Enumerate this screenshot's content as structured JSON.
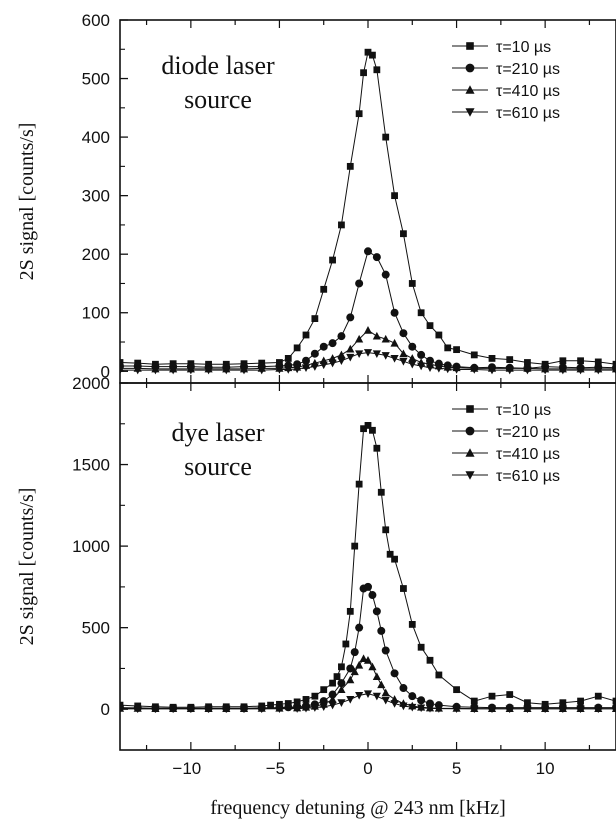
{
  "chart_data": [
    {
      "type": "line",
      "panel": "top",
      "annotation": [
        "diode laser",
        "source"
      ],
      "xlabel": "",
      "ylabel": "2S signal [counts/s]",
      "xlim": [
        -14,
        14
      ],
      "ylim": [
        -20,
        600
      ],
      "yticks": [
        0,
        100,
        200,
        300,
        400,
        500,
        600
      ],
      "legend_position": "top-right",
      "series": [
        {
          "name": "τ=10 µs",
          "marker": "square",
          "x": [
            -14,
            -13,
            -12,
            -11,
            -10,
            -9,
            -8,
            -7,
            -6,
            -5,
            -4.5,
            -4,
            -3.5,
            -3,
            -2.5,
            -2,
            -1.5,
            -1,
            -0.5,
            -0.25,
            0,
            0.25,
            0.5,
            1,
            1.5,
            2,
            2.5,
            3,
            3.5,
            4,
            4.5,
            5,
            6,
            7,
            8,
            9,
            10,
            11,
            12,
            13,
            14
          ],
          "y": [
            15,
            14,
            12,
            13,
            13,
            12,
            12,
            13,
            14,
            15,
            22,
            40,
            62,
            90,
            140,
            190,
            250,
            350,
            440,
            510,
            545,
            540,
            515,
            400,
            300,
            235,
            150,
            100,
            78,
            62,
            40,
            37,
            28,
            22,
            20,
            15,
            12,
            18,
            18,
            16,
            12
          ]
        },
        {
          "name": "τ=210 µs",
          "marker": "circle",
          "x": [
            -14,
            -13,
            -12,
            -11,
            -10,
            -9,
            -8,
            -7,
            -6,
            -5,
            -4.5,
            -4,
            -3.5,
            -3,
            -2.5,
            -2,
            -1.5,
            -1,
            -0.5,
            0,
            0.5,
            1,
            1.5,
            2,
            2.5,
            3,
            3.5,
            4,
            4.5,
            5,
            6,
            7,
            8,
            9,
            10,
            11,
            12,
            13,
            14
          ],
          "y": [
            9,
            9,
            8,
            8,
            8,
            7,
            7,
            8,
            8,
            9,
            10,
            12,
            18,
            30,
            42,
            48,
            60,
            92,
            150,
            205,
            195,
            165,
            100,
            65,
            42,
            28,
            18,
            13,
            10,
            8,
            6,
            7,
            6,
            5,
            8,
            7,
            6,
            7,
            6
          ]
        },
        {
          "name": "τ=410 µs",
          "marker": "triangle-up",
          "x": [
            -14,
            -13,
            -12,
            -11,
            -10,
            -9,
            -8,
            -7,
            -6,
            -5,
            -4.5,
            -4,
            -3.5,
            -3,
            -2.5,
            -2,
            -1.5,
            -1,
            -0.5,
            0,
            0.5,
            1,
            1.5,
            2,
            2.5,
            3,
            3.5,
            4,
            4.5,
            5,
            6,
            7,
            8,
            9,
            10,
            11,
            12,
            13,
            14
          ],
          "y": [
            5,
            5,
            4,
            4,
            4,
            4,
            4,
            4,
            5,
            5,
            6,
            7,
            10,
            14,
            18,
            22,
            28,
            38,
            55,
            70,
            60,
            55,
            48,
            30,
            22,
            15,
            12,
            9,
            7,
            6,
            5,
            5,
            5,
            5,
            4,
            4,
            4,
            4,
            4
          ]
        },
        {
          "name": "τ=610 µs",
          "marker": "triangle-down",
          "x": [
            -14,
            -13,
            -12,
            -11,
            -10,
            -9,
            -8,
            -7,
            -6,
            -5,
            -4.5,
            -4,
            -3.5,
            -3,
            -2.5,
            -2,
            -1.5,
            -1,
            -0.5,
            0,
            0.5,
            1,
            1.5,
            2,
            2.5,
            3,
            3.5,
            4,
            4.5,
            5,
            6,
            7,
            8,
            9,
            10,
            11,
            12,
            13,
            14
          ],
          "y": [
            2,
            2,
            2,
            2,
            2,
            2,
            2,
            2,
            2,
            3,
            3,
            4,
            6,
            8,
            11,
            14,
            18,
            24,
            30,
            32,
            30,
            27,
            22,
            17,
            12,
            9,
            6,
            5,
            4,
            3,
            3,
            2,
            2,
            2,
            2,
            2,
            2,
            2,
            2
          ]
        }
      ]
    },
    {
      "type": "line",
      "panel": "bottom",
      "annotation": [
        "dye laser",
        "source"
      ],
      "xlabel": "frequency detuning @ 243 nm [kHz]",
      "ylabel": "2S signal [counts/s]",
      "xlim": [
        -14,
        14
      ],
      "ylim": [
        -250,
        2000
      ],
      "yticks": [
        0,
        500,
        1000,
        1500,
        2000
      ],
      "xticks": [
        -10,
        -5,
        0,
        5,
        10
      ],
      "legend_position": "top-right",
      "series": [
        {
          "name": "τ=10 µs",
          "marker": "square",
          "x": [
            -14,
            -13,
            -12,
            -11,
            -10,
            -9,
            -8,
            -7,
            -6,
            -5.5,
            -5,
            -4.5,
            -4,
            -3.5,
            -3,
            -2.5,
            -2,
            -1.75,
            -1.5,
            -1.25,
            -1,
            -0.75,
            -0.5,
            -0.25,
            0,
            0.25,
            0.5,
            0.75,
            1,
            1.25,
            1.5,
            2,
            2.5,
            3,
            3.5,
            4,
            5,
            6,
            7,
            8,
            9,
            10,
            11,
            12,
            13,
            14
          ],
          "y": [
            25,
            20,
            15,
            12,
            12,
            15,
            15,
            15,
            20,
            25,
            30,
            35,
            45,
            60,
            80,
            120,
            160,
            200,
            260,
            400,
            600,
            1000,
            1380,
            1720,
            1740,
            1710,
            1600,
            1330,
            1100,
            950,
            920,
            740,
            520,
            380,
            300,
            210,
            120,
            50,
            80,
            90,
            40,
            30,
            40,
            50,
            80,
            50
          ]
        },
        {
          "name": "τ=210 µs",
          "marker": "circle",
          "x": [
            -14,
            -13,
            -12,
            -11,
            -10,
            -9,
            -8,
            -7,
            -6,
            -5,
            -4.5,
            -4,
            -3.5,
            -3,
            -2.5,
            -2,
            -1.5,
            -1,
            -0.75,
            -0.5,
            -0.25,
            0,
            0.25,
            0.5,
            0.75,
            1,
            1.5,
            2,
            2.5,
            3,
            3.5,
            4,
            5,
            6,
            7,
            8,
            9,
            10,
            11,
            12,
            13,
            14
          ],
          "y": [
            10,
            8,
            6,
            6,
            6,
            6,
            6,
            6,
            8,
            10,
            12,
            15,
            20,
            30,
            50,
            90,
            160,
            250,
            350,
            500,
            740,
            750,
            700,
            600,
            480,
            360,
            220,
            130,
            80,
            55,
            35,
            25,
            15,
            12,
            10,
            10,
            10,
            10,
            10,
            10,
            10,
            10
          ]
        },
        {
          "name": "τ=410 µs",
          "marker": "triangle-up",
          "x": [
            -14,
            -13,
            -12,
            -11,
            -10,
            -9,
            -8,
            -7,
            -6,
            -5,
            -4,
            -3.5,
            -3,
            -2.5,
            -2,
            -1.5,
            -1,
            -0.75,
            -0.5,
            -0.25,
            0,
            0.25,
            0.5,
            0.75,
            1,
            1.5,
            2,
            2.5,
            3,
            3.5,
            4,
            5,
            6,
            7,
            8,
            9,
            10,
            11,
            12,
            13,
            14
          ],
          "y": [
            5,
            5,
            4,
            4,
            4,
            4,
            4,
            4,
            5,
            6,
            8,
            12,
            18,
            30,
            60,
            120,
            180,
            230,
            270,
            310,
            300,
            260,
            200,
            150,
            100,
            60,
            35,
            20,
            12,
            8,
            6,
            5,
            4,
            4,
            4,
            4,
            4,
            4,
            4,
            4,
            4
          ]
        },
        {
          "name": "τ=610 µs",
          "marker": "triangle-down",
          "x": [
            -14,
            -13,
            -12,
            -11,
            -10,
            -9,
            -8,
            -7,
            -6,
            -5,
            -4,
            -3.5,
            -3,
            -2.5,
            -2,
            -1.5,
            -1,
            -0.5,
            0,
            0.5,
            1,
            1.5,
            2,
            2.5,
            3,
            3.5,
            4,
            5,
            6,
            7,
            8,
            9,
            10,
            11,
            12,
            13,
            14
          ],
          "y": [
            2,
            2,
            2,
            2,
            2,
            2,
            2,
            2,
            2,
            3,
            4,
            6,
            10,
            15,
            25,
            40,
            60,
            85,
            95,
            80,
            55,
            35,
            20,
            12,
            8,
            5,
            4,
            3,
            2,
            2,
            2,
            2,
            2,
            2,
            2,
            2,
            2
          ]
        }
      ]
    }
  ]
}
